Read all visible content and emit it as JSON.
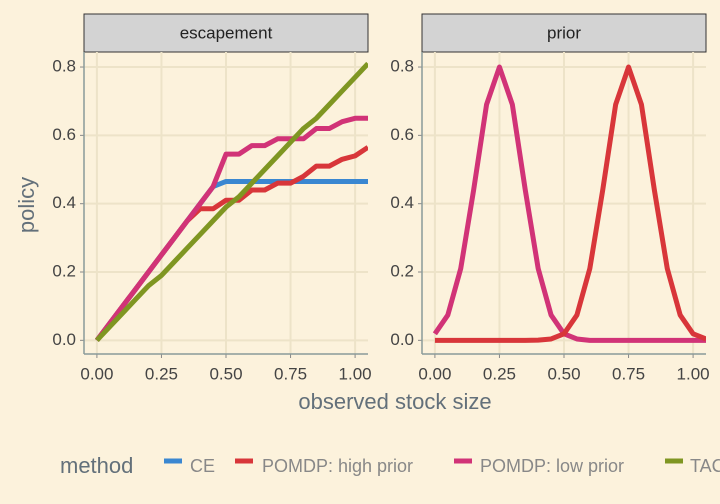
{
  "chart_data": [
    {
      "type": "line",
      "title": "escapement",
      "ylabel": "policy",
      "xlabel": "observed stock size",
      "legend_title": "method",
      "x": [
        0,
        0.05,
        0.1,
        0.15,
        0.2,
        0.25,
        0.3,
        0.35,
        0.4,
        0.45,
        0.5,
        0.55,
        0.6,
        0.65,
        0.7,
        0.75,
        0.8,
        0.85,
        0.9,
        0.95,
        1,
        1.05
      ],
      "series": [
        {
          "name": "CE",
          "color": "#3a87d1",
          "values": [
            0,
            0.05,
            0.1,
            0.15,
            0.2,
            0.25,
            0.3,
            0.35,
            0.4,
            0.45,
            0.465,
            0.465,
            0.465,
            0.465,
            0.465,
            0.465,
            0.465,
            0.465,
            0.465,
            0.465,
            0.465,
            0.465
          ]
        },
        {
          "name": "POMDP: high prior",
          "color": "#d8363a",
          "values": [
            0,
            0.05,
            0.1,
            0.15,
            0.2,
            0.25,
            0.3,
            0.35,
            0.385,
            0.385,
            0.41,
            0.41,
            0.44,
            0.44,
            0.46,
            0.46,
            0.48,
            0.51,
            0.51,
            0.53,
            0.54,
            0.565
          ]
        },
        {
          "name": "POMDP: low prior",
          "color": "#d13377",
          "values": [
            0,
            0.05,
            0.1,
            0.15,
            0.2,
            0.25,
            0.3,
            0.35,
            0.4,
            0.45,
            0.545,
            0.545,
            0.57,
            0.57,
            0.59,
            0.59,
            0.59,
            0.62,
            0.62,
            0.64,
            0.65,
            0.65
          ]
        },
        {
          "name": "TAC",
          "color": "#7f9622",
          "values": [
            0,
            0.04,
            0.08,
            0.12,
            0.16,
            0.19,
            0.23,
            0.27,
            0.31,
            0.35,
            0.39,
            0.42,
            0.46,
            0.5,
            0.54,
            0.58,
            0.62,
            0.65,
            0.69,
            0.73,
            0.77,
            0.81
          ]
        }
      ],
      "xlim": [
        -0.05,
        1.05
      ],
      "ylim": [
        -0.04,
        0.844
      ],
      "xticks": [
        {
          "value": 0,
          "label": "0.00"
        },
        0.25,
        {
          "value": 0.5,
          "label": "0.50"
        },
        0.75,
        {
          "value": 1,
          "label": "1.00"
        }
      ],
      "yticks": [
        {
          "value": 0,
          "label": "0.0"
        },
        0.2,
        0.4,
        0.6,
        0.8
      ],
      "grid": true
    },
    {
      "type": "line",
      "title": "prior",
      "x": [
        0,
        0.05,
        0.1,
        0.15,
        0.2,
        0.25,
        0.3,
        0.35,
        0.4,
        0.45,
        0.5,
        0.55,
        0.6,
        0.65,
        0.7,
        0.75,
        0.8,
        0.85,
        0.9,
        0.95,
        1,
        1.05
      ],
      "series": [
        {
          "color": "#d13377",
          "values": [
            0.019,
            0.074,
            0.21,
            0.44,
            0.69,
            0.8,
            0.69,
            0.44,
            0.21,
            0.074,
            0.019,
            0.004,
            0,
            0,
            0,
            0,
            0,
            0,
            0,
            0,
            0,
            0
          ]
        },
        {
          "color": "#d8363a",
          "values": [
            0,
            0,
            0,
            0,
            0,
            0,
            0,
            0,
            0.0005,
            0.004,
            0.019,
            0.074,
            0.21,
            0.44,
            0.69,
            0.8,
            0.69,
            0.44,
            0.21,
            0.074,
            0.019,
            0.004
          ]
        }
      ],
      "xlim": [
        -0.05,
        1.05
      ],
      "ylim": [
        -0.04,
        0.844
      ],
      "xticks": [
        {
          "value": 0,
          "label": "0.00"
        },
        0.25,
        {
          "value": 0.5,
          "label": "0.50"
        },
        0.75,
        {
          "value": 1,
          "label": "1.00"
        }
      ],
      "yticks": [
        {
          "value": 0,
          "label": "0.0"
        },
        0.2,
        0.4,
        0.6,
        0.8
      ],
      "grid": true
    }
  ]
}
